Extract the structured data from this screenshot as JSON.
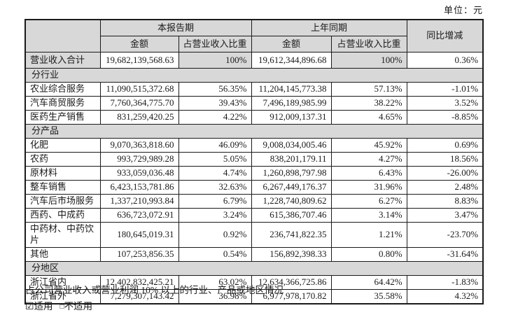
{
  "unit_label": "单位：元",
  "table": {
    "header": {
      "current_period": "本报告期",
      "prior_period": "上年同期",
      "yoy": "同比增减",
      "amount": "金额",
      "pct": "占营业收入比重"
    },
    "total_row": {
      "label": "营业收入合计",
      "cur_amount": "19,682,139,568.63",
      "cur_pct": "100%",
      "prior_amount": "19,612,344,896.68",
      "prior_pct": "100%",
      "yoy": "0.36%"
    },
    "sections": [
      {
        "title": "分行业",
        "rows": [
          {
            "label": "农业综合服务",
            "cur_amount": "11,090,515,372.68",
            "cur_pct": "56.35%",
            "prior_amount": "11,204,145,773.38",
            "prior_pct": "57.13%",
            "yoy": "-1.01%"
          },
          {
            "label": "汽车商贸服务",
            "cur_amount": "7,760,364,775.70",
            "cur_pct": "39.43%",
            "prior_amount": "7,496,189,985.99",
            "prior_pct": "38.22%",
            "yoy": "3.52%"
          },
          {
            "label": "医药生产销售",
            "cur_amount": "831,259,420.25",
            "cur_pct": "4.22%",
            "prior_amount": "912,009,137.31",
            "prior_pct": "4.65%",
            "yoy": "-8.85%"
          }
        ]
      },
      {
        "title": "分产品",
        "rows": [
          {
            "label": "化肥",
            "cur_amount": "9,070,363,818.60",
            "cur_pct": "46.09%",
            "prior_amount": "9,008,034,005.46",
            "prior_pct": "45.92%",
            "yoy": "0.69%"
          },
          {
            "label": "农药",
            "cur_amount": "993,729,989.28",
            "cur_pct": "5.05%",
            "prior_amount": "838,201,179.11",
            "prior_pct": "4.27%",
            "yoy": "18.56%"
          },
          {
            "label": "原材料",
            "cur_amount": "933,059,036.48",
            "cur_pct": "4.74%",
            "prior_amount": "1,260,898,797.98",
            "prior_pct": "6.43%",
            "yoy": "-26.00%"
          },
          {
            "label": "整车销售",
            "cur_amount": "6,423,153,781.86",
            "cur_pct": "32.63%",
            "prior_amount": "6,267,449,176.37",
            "prior_pct": "31.96%",
            "yoy": "2.48%"
          },
          {
            "label": "汽车后市场服务",
            "cur_amount": "1,337,210,993.84",
            "cur_pct": "6.79%",
            "prior_amount": "1,228,740,809.62",
            "prior_pct": "6.27%",
            "yoy": "8.83%"
          },
          {
            "label": "西药、中成药",
            "cur_amount": "636,723,072.91",
            "cur_pct": "3.24%",
            "prior_amount": "615,386,707.46",
            "prior_pct": "3.14%",
            "yoy": "3.47%"
          },
          {
            "label": "中药材、中药饮片",
            "cur_amount": "180,645,019.31",
            "cur_pct": "0.92%",
            "prior_amount": "236,741,822.35",
            "prior_pct": "1.21%",
            "yoy": "-23.70%"
          },
          {
            "label": "其他",
            "cur_amount": "107,253,856.35",
            "cur_pct": "0.54%",
            "prior_amount": "156,892,398.33",
            "prior_pct": "0.80%",
            "yoy": "-31.64%"
          }
        ]
      },
      {
        "title": "分地区",
        "rows": [
          {
            "label": "浙江省内",
            "cur_amount": "12,402,832,425.21",
            "cur_pct": "63.02%",
            "prior_amount": "12,634,366,725.86",
            "prior_pct": "64.42%",
            "yoy": "-1.83%"
          },
          {
            "label": "浙江省外",
            "cur_amount": "7,279,307,143.42",
            "cur_pct": "36.98%",
            "prior_amount": "6,977,978,170.82",
            "prior_pct": "35.58%",
            "yoy": "4.32%"
          }
        ]
      }
    ]
  },
  "footer": {
    "note": "占公司营业收入或营业利润 10% 以上的行业、产品或地区情况",
    "checked_box": "☑",
    "applicable": "适用",
    "empty_box": "□",
    "not_applicable": "不适用"
  }
}
